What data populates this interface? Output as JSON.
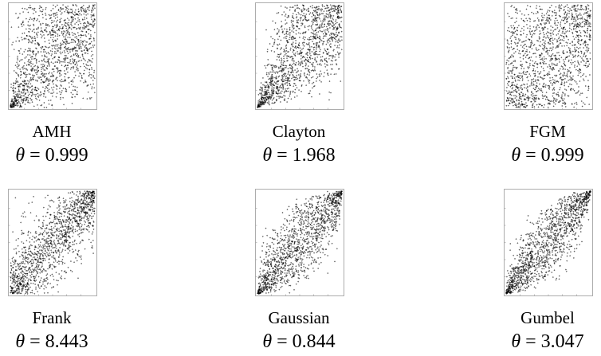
{
  "chart_data": [
    {
      "type": "scatter",
      "title": "AMH",
      "param_symbol": "θ",
      "param_value": "0.999",
      "model": "amh",
      "theta": 0.999
    },
    {
      "type": "scatter",
      "title": "Clayton",
      "param_symbol": "θ",
      "param_value": "1.968",
      "model": "clayton",
      "theta": 1.968
    },
    {
      "type": "scatter",
      "title": "FGM",
      "param_symbol": "θ",
      "param_value": "0.999",
      "model": "fgm",
      "theta": 0.999
    },
    {
      "type": "scatter",
      "title": "Frank",
      "param_symbol": "θ",
      "param_value": "8.443",
      "model": "frank",
      "theta": 8.443
    },
    {
      "type": "scatter",
      "title": "Gaussian",
      "param_symbol": "θ",
      "param_value": "0.844",
      "model": "gaussian",
      "theta": 0.844
    },
    {
      "type": "scatter",
      "title": "Gumbel",
      "param_symbol": "θ",
      "param_value": "3.047",
      "model": "gumbel",
      "theta": 3.047
    }
  ]
}
